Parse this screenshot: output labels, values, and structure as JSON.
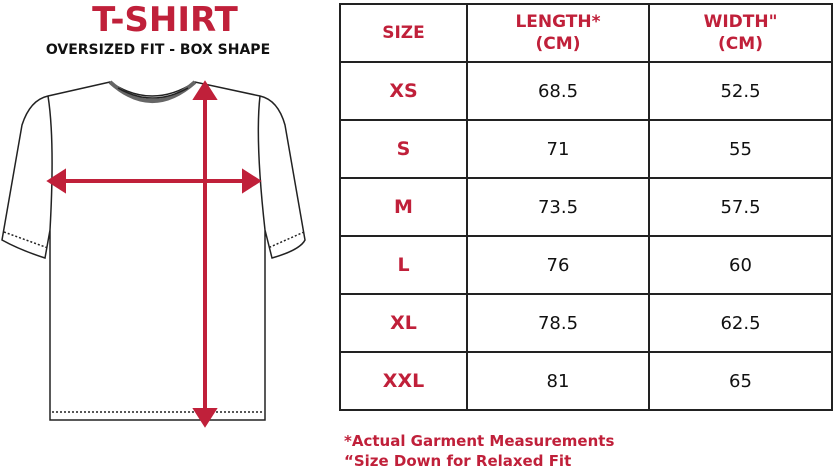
{
  "title": "T-SHIRT",
  "subtitle": "OVERSIZED FIT - BOX SHAPE",
  "colors": {
    "accent": "#c0203a"
  },
  "table": {
    "headers": [
      "SIZE",
      "LENGTH*\n(CM)",
      "WIDTH\"\n(CM)"
    ],
    "rows": [
      [
        "XS",
        "68.5",
        "52.5"
      ],
      [
        "S",
        "71",
        "55"
      ],
      [
        "M",
        "73.5",
        "57.5"
      ],
      [
        "L",
        "76",
        "60"
      ],
      [
        "XL",
        "78.5",
        "62.5"
      ],
      [
        "XXL",
        "81",
        "65"
      ]
    ]
  },
  "notes": [
    "*Actual Garment Measurements",
    "“Size Down for Relaxed Fit"
  ]
}
